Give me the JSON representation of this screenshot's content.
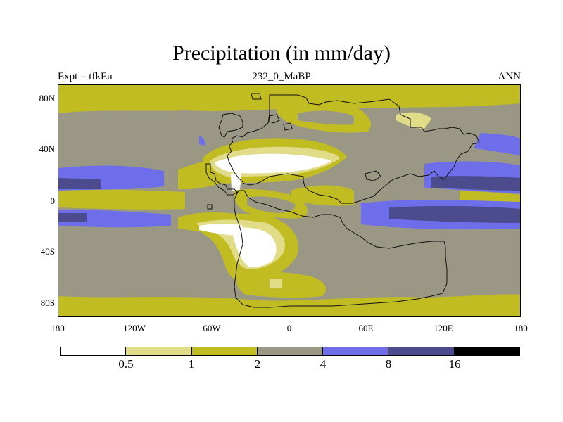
{
  "title": "Precipitation (in mm/day)",
  "subtitle_left": "Expt = tfkEu",
  "subtitle_center": "232_0_MaBP",
  "subtitle_right": "ANN",
  "map": {
    "projection": "cylindrical equidistant",
    "lon_range": [
      -180,
      180
    ],
    "lat_range": [
      -90,
      90
    ],
    "background_class": "4-8 mm/day (grey)"
  },
  "y_ticks": [
    "80N",
    "40N",
    "0",
    "40S",
    "80S"
  ],
  "x_ticks": [
    "180",
    "120W",
    "60W",
    "0",
    "60E",
    "120E",
    "180"
  ],
  "colorbar": {
    "colors": [
      "#ffffff",
      "#e0dc88",
      "#c1bc22",
      "#9a9884",
      "#6e6eea",
      "#4b4b8e",
      "#000000"
    ],
    "labels": [
      "0.5",
      "1",
      "2",
      "4",
      "8",
      "16"
    ]
  }
}
